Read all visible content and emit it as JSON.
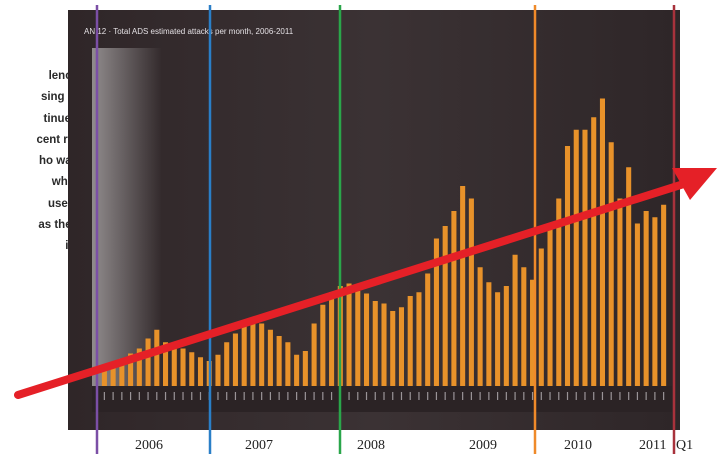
{
  "side_text": [
    "lence",
    "sing in",
    "tinued",
    "cent re-",
    "ho was",
    "what",
    "used,",
    "as they",
    "ic."
  ],
  "colors": {
    "plot_bg": "#3b3234",
    "bar": "#e8922a",
    "arrow": "#e52027",
    "line_2006": "#7b4fa6",
    "line_2007": "#2a7fc7",
    "line_2008": "#2aa64a",
    "line_2009": "#ef8a2a",
    "line_2011": "#a8323c"
  },
  "chart_data": {
    "type": "bar",
    "title": "AN 12 · Total ADS estimated attacks per month, 2006-2011",
    "year_labels": [
      "2006",
      "2007",
      "2008",
      "2009",
      "2010",
      "2011",
      "Q1"
    ],
    "values": [
      15,
      18,
      22,
      26,
      30,
      38,
      45,
      35,
      32,
      30,
      27,
      23,
      20,
      25,
      35,
      42,
      48,
      52,
      50,
      45,
      40,
      35,
      25,
      28,
      50,
      65,
      75,
      80,
      82,
      76,
      74,
      68,
      66,
      60,
      63,
      72,
      75,
      90,
      118,
      128,
      140,
      160,
      150,
      95,
      83,
      75,
      80,
      105,
      95,
      85,
      110,
      130,
      150,
      192,
      205,
      205,
      215,
      230,
      195,
      150,
      175,
      130,
      140,
      135,
      145
    ],
    "values_approximate": true,
    "ylim": [
      0,
      240
    ],
    "grid": false,
    "legend": "none",
    "annotations": [
      {
        "kind": "upward trend arrow"
      }
    ]
  }
}
